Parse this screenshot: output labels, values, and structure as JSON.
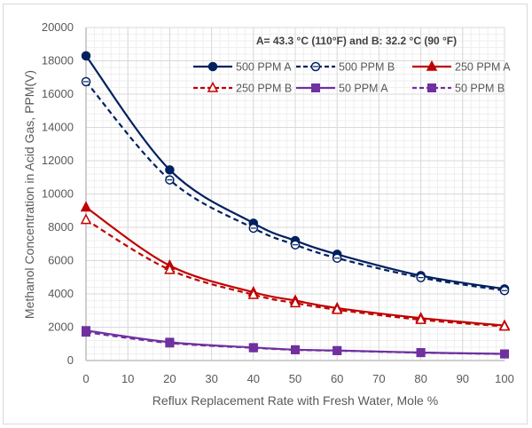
{
  "chart_data": {
    "type": "line",
    "title": "",
    "annotation": "A= 43.3 °C (110°F)  and B: 32.2 °C (90 °F)",
    "xlabel": "Reflux Replacement Rate with Fresh Water, Mole %",
    "ylabel": "Methanol Concentration in Acid  Gas, PPM(V)",
    "xlim": [
      0,
      100
    ],
    "ylim": [
      0,
      20000
    ],
    "xticks": [
      0,
      10,
      20,
      30,
      40,
      50,
      60,
      70,
      80,
      90,
      100
    ],
    "yticks": [
      0,
      2000,
      4000,
      6000,
      8000,
      10000,
      12000,
      14000,
      16000,
      18000,
      20000
    ],
    "x_minor_step": 2,
    "y_minor_step": 400,
    "grid": true,
    "legend_position": "top-right",
    "x": [
      0,
      20,
      40,
      50,
      60,
      80,
      100
    ],
    "series": [
      {
        "name": "500 PPM A",
        "color": "#002060",
        "dash": "solid",
        "marker": "circle",
        "filled": true,
        "values": [
          18300,
          11450,
          8250,
          7200,
          6380,
          5100,
          4300
        ]
      },
      {
        "name": "500 PPM B",
        "color": "#002060",
        "dash": "dashed",
        "marker": "circle",
        "filled": false,
        "values": [
          16750,
          10850,
          7950,
          6950,
          6150,
          4980,
          4200
        ]
      },
      {
        "name": "250 PPM A",
        "color": "#c00000",
        "dash": "solid",
        "marker": "triangle",
        "filled": true,
        "values": [
          9200,
          5700,
          4100,
          3600,
          3150,
          2550,
          2100
        ]
      },
      {
        "name": "250 PPM B",
        "color": "#c00000",
        "dash": "dashed",
        "marker": "triangle",
        "filled": false,
        "values": [
          8450,
          5450,
          3950,
          3450,
          3050,
          2450,
          2050
        ]
      },
      {
        "name": "50 PPM A",
        "color": "#7030a0",
        "dash": "solid",
        "marker": "square",
        "filled": true,
        "values": [
          1800,
          1100,
          780,
          650,
          600,
          480,
          400
        ]
      },
      {
        "name": "50 PPM B",
        "color": "#7030a0",
        "dash": "dashed",
        "marker": "square",
        "filled": true,
        "values": [
          1700,
          1050,
          760,
          640,
          590,
          470,
          390
        ]
      }
    ]
  }
}
